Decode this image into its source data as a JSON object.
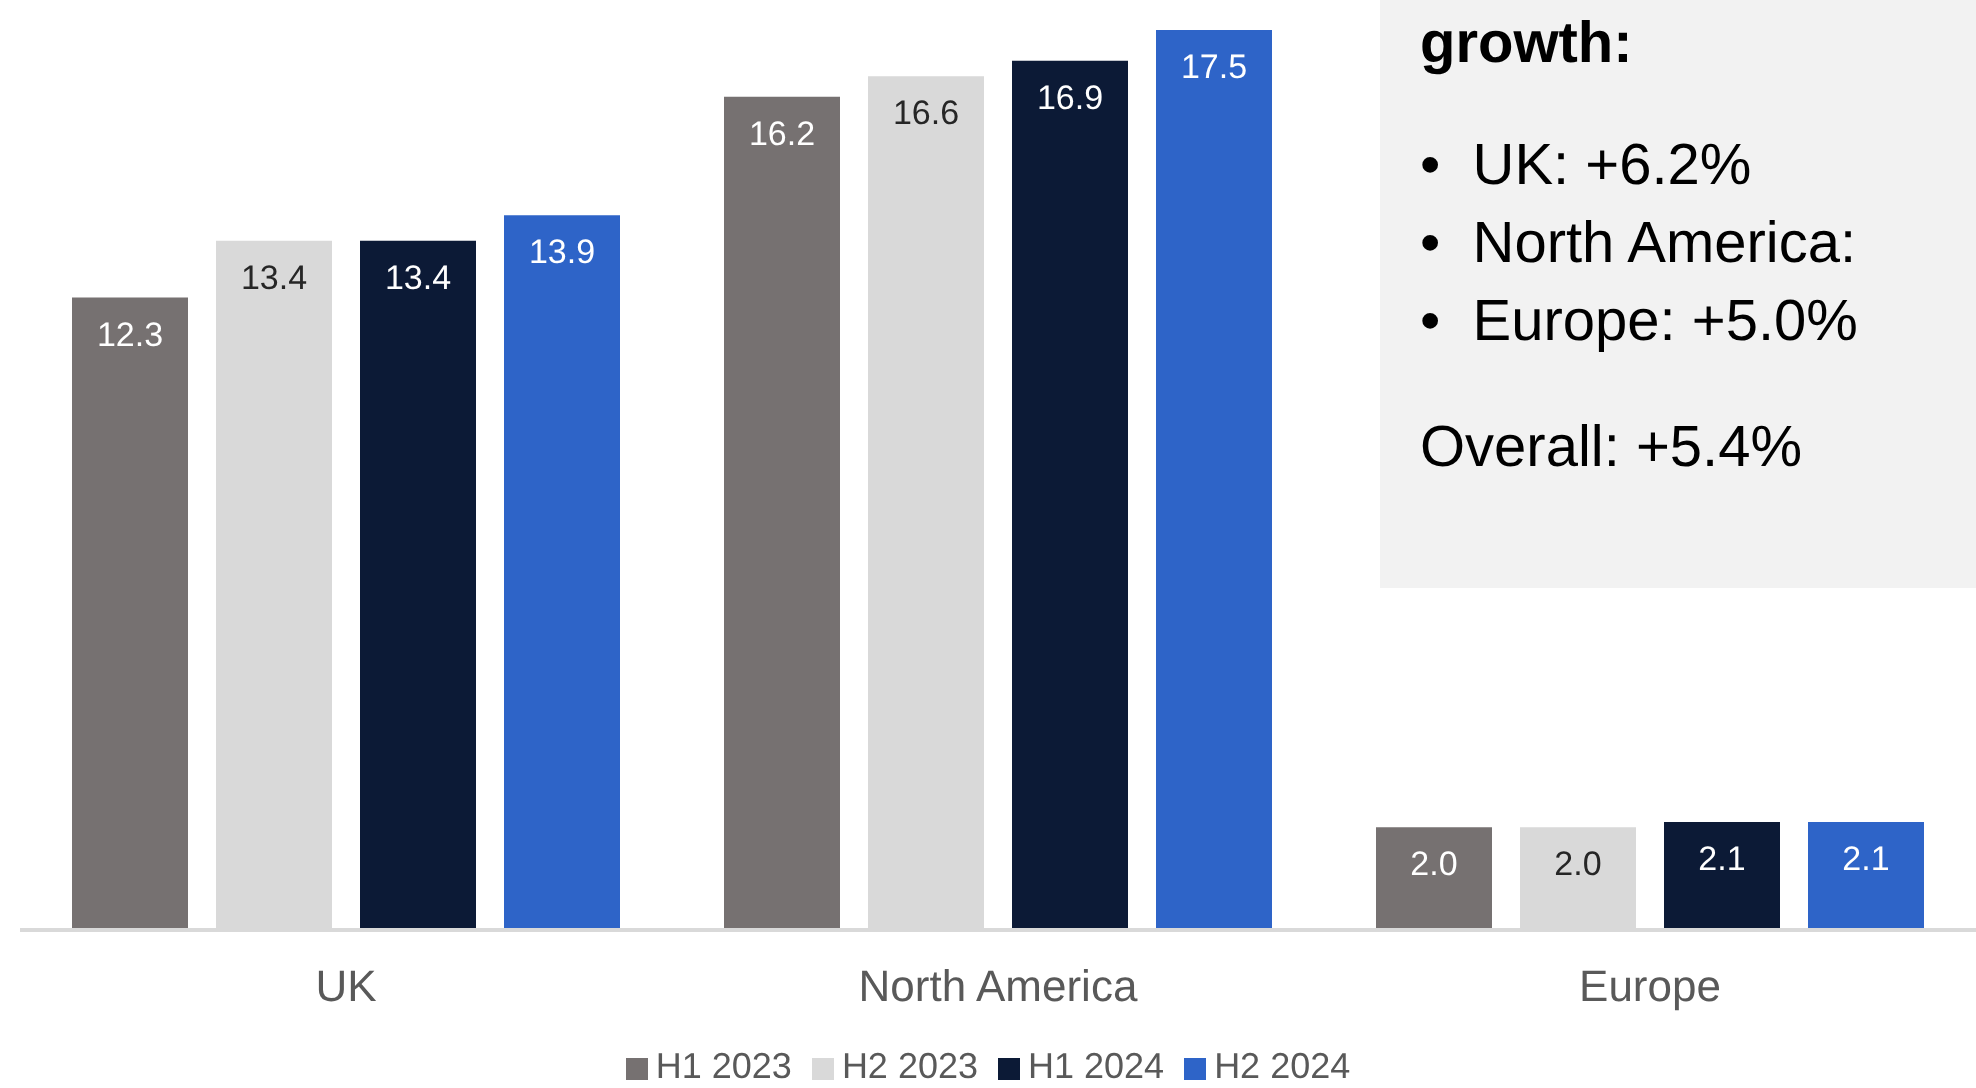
{
  "chart_data": {
    "type": "bar",
    "categories": [
      "UK",
      "North America",
      "Europe"
    ],
    "series": [
      {
        "name": "H1 2023",
        "color": "#767171",
        "values": [
          12.3,
          16.2,
          2.0
        ],
        "value_labels": [
          "12.3",
          "16.2",
          "2.0"
        ]
      },
      {
        "name": "H2 2023",
        "color": "#d9d9d9",
        "values": [
          13.4,
          16.6,
          2.0
        ],
        "value_labels": [
          "13.4",
          "16.6",
          "2.0"
        ]
      },
      {
        "name": "H1 2024",
        "color": "#0c1a36",
        "values": [
          13.4,
          16.9,
          2.1
        ],
        "value_labels": [
          "13.4",
          "16.9",
          "2.1"
        ]
      },
      {
        "name": "H2 2024",
        "color": "#2e64c8",
        "values": [
          13.9,
          17.5,
          2.1
        ],
        "value_labels": [
          "13.9",
          "17.5",
          "2.1"
        ]
      }
    ],
    "legend": "bottom",
    "grid": false,
    "annotations": [
      "growth:",
      "•  UK: +6.2%",
      "•  North America:",
      "•  Europe: +5.0%",
      "Overall: +5.4%"
    ]
  }
}
